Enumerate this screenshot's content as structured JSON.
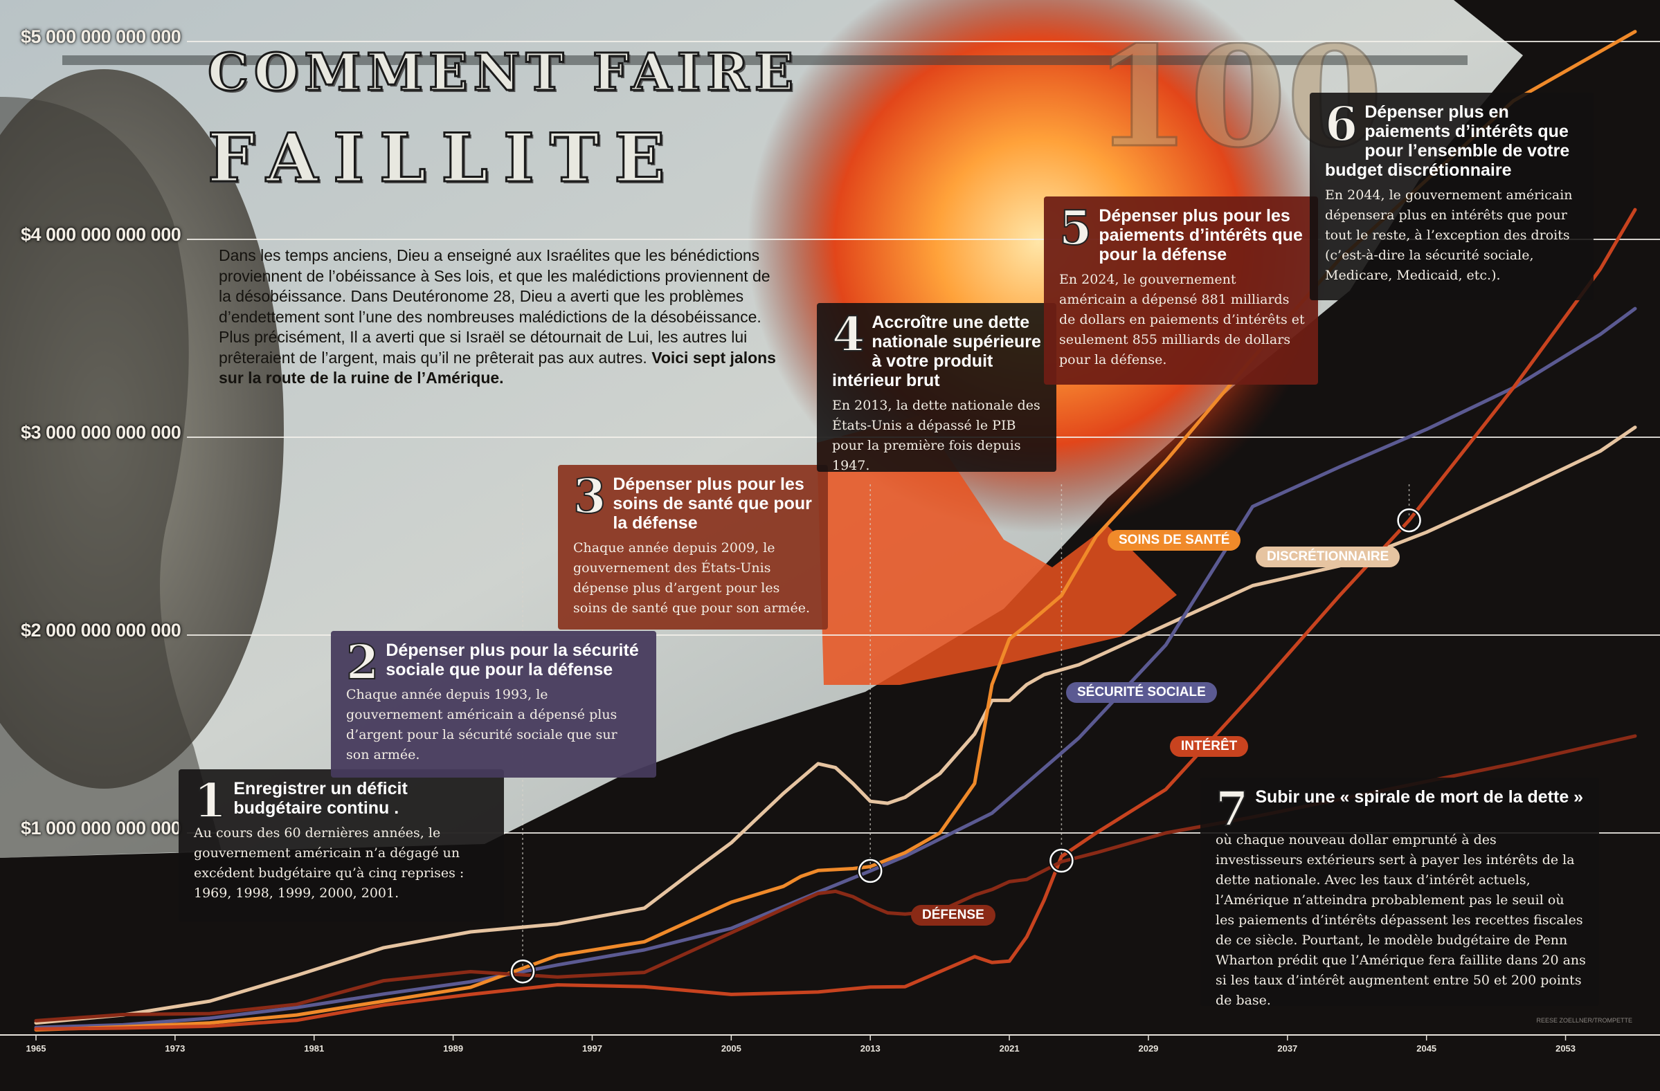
{
  "title": {
    "line1": "COMMENT FAIRE",
    "line2": "FAILLITE"
  },
  "intro": {
    "text": "Dans les temps anciens, Dieu a enseigné aux Israélites que les bénédictions proviennent de l’obéissance à Ses lois, et que les malédictions proviennent de la désobéissance. Dans Deutéronome 28, Dieu a averti que les problèmes d’endettement sont l’une des nombreuses malédictions de la désobéissance.  Plus précisément, Il a averti que si Israël se détournait de Lui, les autres lui prêteraient de l’argent, mais qu’il ne prêterait pas aux autres.",
    "bold": "Voici sept jalons sur la route de la ruine de l’Amérique."
  },
  "milestones": [
    {
      "num": "1",
      "title": "Enregistrer un déficit budgétaire continu .",
      "text": "Au cours des 60 dernières années, le gouvernement américain n’a dégagé un excédent budgétaire qu’à cinq reprises : 1969, 1998, 1999, 2000, 2001."
    },
    {
      "num": "2",
      "title": "Dépenser plus pour la sécurité sociale que pour la défense",
      "text": "Chaque année depuis 1993, le gouvernement américain a dépensé plus d’argent pour la sécurité sociale que sur son armée."
    },
    {
      "num": "3",
      "title": "Dépenser plus pour les soins de santé que pour la défense",
      "text": "Chaque année depuis 2009, le gouvernement des États-Unis dépense plus d’argent pour les soins de santé que pour son armée."
    },
    {
      "num": "4",
      "title": "Accroître une dette nationale supérieure à votre produit intérieur brut",
      "text": "En 2013, la dette nationale des États-Unis a dépassé le PIB pour la première fois depuis 1947."
    },
    {
      "num": "5",
      "title": "Dépenser plus pour les paiements d’intérêts que pour la défense",
      "text": "En 2024, le gouvernement américain a dépensé 881 milliards de dollars en paiements d’intérêts et seulement 855 milliards de dollars pour la défense."
    },
    {
      "num": "6",
      "title": "Dépenser plus en paiements d’intérêts que pour l’ensemble de votre budget discrétionnaire",
      "text": "En 2044, le gouvernement américain dépensera plus en intérêts que pour tout le reste, à l’exception des droits (c’est-à-dire la sécurité sociale, Medicare, Medicaid, etc.)."
    },
    {
      "num": "7",
      "title": "Subir une « spirale de mort de la dette »",
      "text": "où chaque nouveau dollar emprunté à des investisseurs extérieurs sert à payer les intérêts de la dette nationale. Avec les taux d’intérêt actuels, l’Amérique n’atteindra probablement pas le seuil où les paiements d’intérêts dépassent les recettes fiscales de ce siècle. Pourtant, le modèle budgétaire de Penn Wharton prédit que l’Amérique fera faillite dans 20 ans si les taux d’intérêt augmentent entre 50 et 200 points de base."
    }
  ],
  "series_labels": {
    "soins": "SOINS DE SANTÉ",
    "discretionnaire": "DISCRÉTIONNAIRE",
    "securite": "SÉCURITÉ SOCIALE",
    "interet": "INTÉRÊT",
    "defense": "DÉFENSE"
  },
  "credit": "REESE ZOELLNER/TROMPETTE",
  "chart_data": {
    "type": "line",
    "ylim": [
      0,
      5000000000000
    ],
    "xlim": [
      1965,
      2057
    ],
    "y_ticks": [
      {
        "value": 1000000000000,
        "label": "$1 000 000 000 000"
      },
      {
        "value": 2000000000000,
        "label": "$2 000 000 000 000"
      },
      {
        "value": 3000000000000,
        "label": "$3 000 000 000 000"
      },
      {
        "value": 4000000000000,
        "label": "$4 000 000 000 000"
      },
      {
        "value": 5000000000000,
        "label": "$5 000 000 000 000"
      }
    ],
    "x_ticks": [
      "1965",
      "1973",
      "1981",
      "1989",
      "1997",
      "2005",
      "2013",
      "2021",
      "2029",
      "2037",
      "2045",
      "2053"
    ],
    "colors": {
      "discretionnaire": "#e6c4a1",
      "soins": "#f08a2a",
      "securite": "#5b5a92",
      "interet": "#c8431f",
      "defense": "#8a2a16"
    },
    "series": [
      {
        "key": "discretionnaire",
        "name": "DISCRÉTIONNAIRE",
        "x": [
          1965,
          1970,
          1975,
          1980,
          1985,
          1990,
          1995,
          2000,
          2003,
          2005,
          2008,
          2010,
          2011,
          2012,
          2013,
          2014,
          2015,
          2017,
          2019,
          2020,
          2021,
          2022,
          2023,
          2025,
          2027,
          2030,
          2035,
          2040,
          2045,
          2050,
          2055,
          2057
        ],
        "y": [
          40000000000,
          80000000000,
          150000000000,
          280000000000,
          420000000000,
          500000000000,
          540000000000,
          620000000000,
          820000000000,
          950000000000,
          1200000000000,
          1350000000000,
          1330000000000,
          1250000000000,
          1160000000000,
          1150000000000,
          1180000000000,
          1300000000000,
          1500000000000,
          1670000000000,
          1670000000000,
          1750000000000,
          1800000000000,
          1850000000000,
          1930000000000,
          2050000000000,
          2250000000000,
          2350000000000,
          2520000000000,
          2720000000000,
          2930000000000,
          3050000000000
        ]
      },
      {
        "key": "securite",
        "name": "SÉCURITÉ SOCIALE",
        "x": [
          1965,
          1970,
          1975,
          1980,
          1985,
          1990,
          1995,
          2000,
          2005,
          2010,
          2013,
          2015,
          2020,
          2025,
          2030,
          2035,
          2040,
          2045,
          2050,
          2055,
          2057
        ],
        "y": [
          17000000000,
          30000000000,
          64000000000,
          118000000000,
          186000000000,
          248000000000,
          333000000000,
          409000000000,
          518000000000,
          701000000000,
          808000000000,
          882000000000,
          1100000000000,
          1480000000000,
          1950000000000,
          2650000000000,
          2850000000000,
          3040000000000,
          3250000000000,
          3520000000000,
          3650000000000
        ]
      },
      {
        "key": "soins",
        "name": "SOINS DE SANTÉ",
        "x": [
          1965,
          1970,
          1975,
          1980,
          1985,
          1990,
          1995,
          2000,
          2005,
          2008,
          2009,
          2010,
          2012,
          2013,
          2015,
          2017,
          2019,
          2020,
          2021,
          2022,
          2024,
          2026,
          2030,
          2035,
          2040,
          2045,
          2050,
          2055,
          2057
        ],
        "y": [
          5000000000,
          20000000000,
          40000000000,
          80000000000,
          150000000000,
          220000000000,
          380000000000,
          450000000000,
          650000000000,
          730000000000,
          780000000000,
          810000000000,
          820000000000,
          830000000000,
          900000000000,
          1000000000000,
          1250000000000,
          1750000000000,
          1980000000000,
          2050000000000,
          2200000000000,
          2500000000000,
          2880000000000,
          3400000000000,
          3900000000000,
          4300000000000,
          4700000000000,
          4950000000000,
          5050000000000
        ]
      },
      {
        "key": "interet",
        "name": "INTÉRÊT",
        "x": [
          1965,
          1970,
          1975,
          1980,
          1985,
          1990,
          1995,
          2000,
          2005,
          2010,
          2013,
          2015,
          2019,
          2020,
          2021,
          2022,
          2023,
          2024,
          2026,
          2030,
          2035,
          2040,
          2044,
          2050,
          2055,
          2057
        ],
        "y": [
          9000000000,
          14000000000,
          23000000000,
          53000000000,
          130000000000,
          184000000000,
          232000000000,
          223000000000,
          184000000000,
          196000000000,
          221000000000,
          223000000000,
          375000000000,
          345000000000,
          352000000000,
          475000000000,
          660000000000,
          881000000000,
          1000000000000,
          1220000000000,
          1700000000000,
          2200000000000,
          2580000000000,
          3250000000000,
          3850000000000,
          4150000000000
        ]
      },
      {
        "key": "defense",
        "name": "DÉFENSE",
        "x": [
          1965,
          1970,
          1975,
          1980,
          1985,
          1990,
          1995,
          2000,
          2005,
          2008,
          2010,
          2011,
          2012,
          2013,
          2014,
          2015,
          2017,
          2019,
          2020,
          2021,
          2022,
          2024,
          2026,
          2030,
          2035,
          2040,
          2045,
          2050,
          2055,
          2057
        ],
        "y": [
          51000000000,
          82000000000,
          87000000000,
          134000000000,
          253000000000,
          299000000000,
          272000000000,
          295000000000,
          495000000000,
          616000000000,
          694000000000,
          705000000000,
          678000000000,
          633000000000,
          596000000000,
          590000000000,
          606000000000,
          686000000000,
          714000000000,
          754000000000,
          765000000000,
          855000000000,
          900000000000,
          1000000000000,
          1080000000000,
          1170000000000,
          1260000000000,
          1350000000000,
          1450000000000,
          1490000000000
        ]
      }
    ],
    "markers": [
      {
        "x": 1993,
        "y": 300000000000
      },
      {
        "x": 2013,
        "y": 808000000000
      },
      {
        "x": 2024,
        "y": 860000000000
      },
      {
        "x": 2044,
        "y": 2580000000000
      }
    ]
  }
}
